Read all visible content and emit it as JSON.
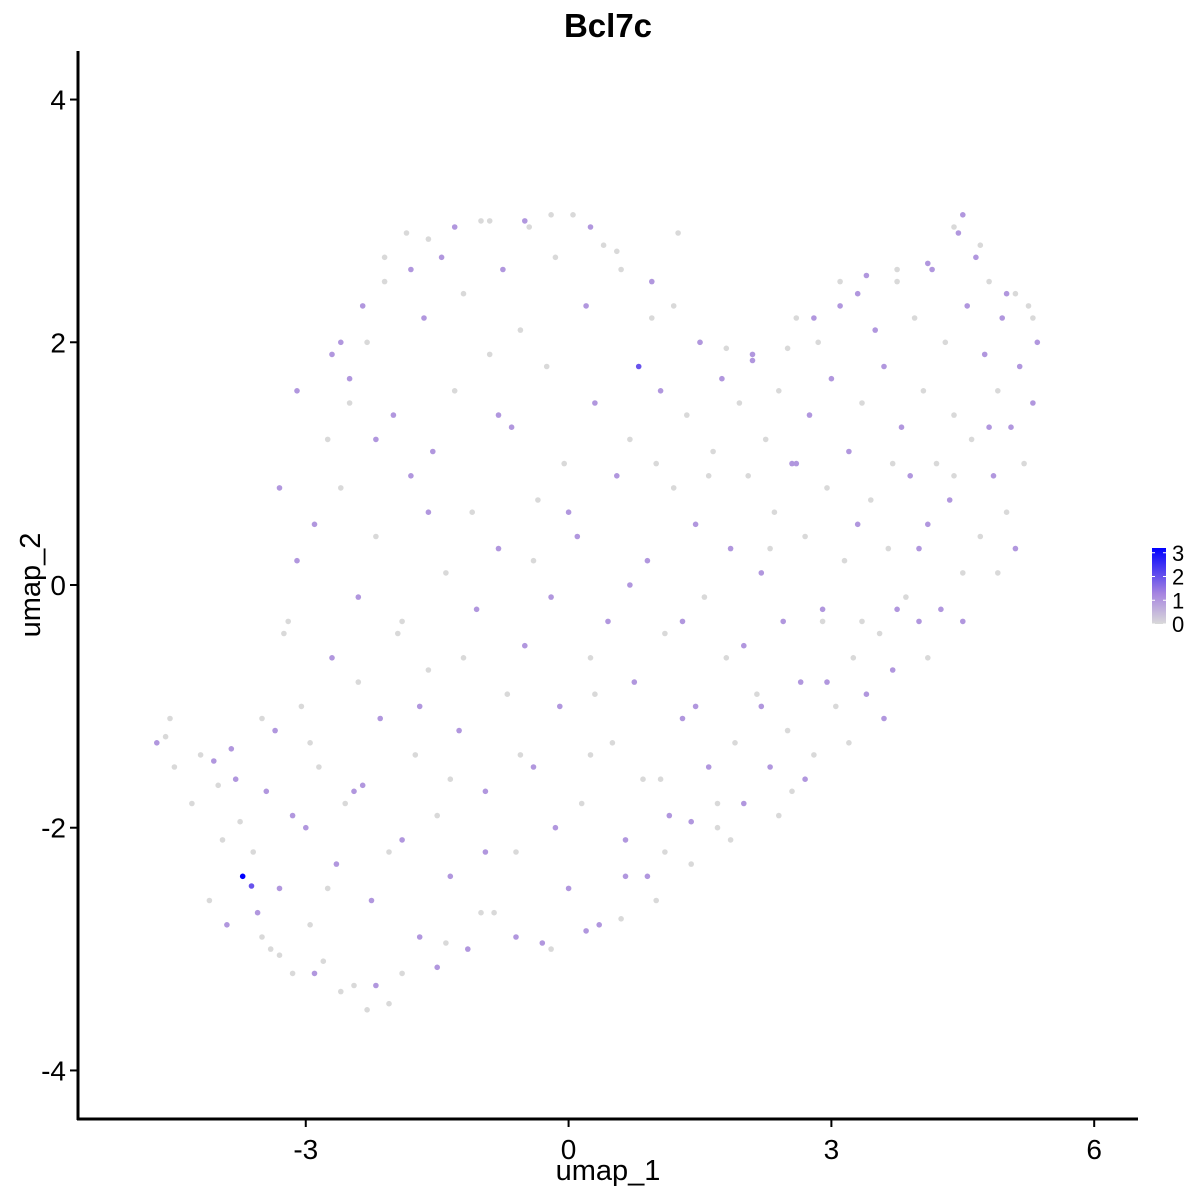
{
  "chart_data": {
    "type": "scatter",
    "title": "Bcl7c",
    "xlabel": "umap_1",
    "ylabel": "umap_2",
    "xlim": [
      -5.6,
      6.5
    ],
    "ylim": [
      -4.4,
      4.4
    ],
    "x_ticks": [
      -3,
      0,
      3,
      6
    ],
    "y_ticks": [
      -4,
      -2,
      0,
      2,
      4
    ],
    "x_tick_labels": [
      "-3",
      "0",
      "3",
      "6"
    ],
    "y_tick_labels": [
      "-4",
      "-2",
      "0",
      "2",
      "4"
    ],
    "grid": false,
    "legend": {
      "placement": "right",
      "type": "colorbar",
      "min": 0,
      "max": 3.2,
      "ticks": [
        0,
        1,
        2,
        3
      ],
      "tick_labels": [
        "0",
        "1",
        "2",
        "3"
      ],
      "low_color": "#d9d9d9",
      "high_color": "#0000ff"
    },
    "point_default_value": 0,
    "points": [
      [
        -4.7,
        -1.3,
        1
      ],
      [
        -4.6,
        -1.25,
        0
      ],
      [
        -4.55,
        -1.1,
        0
      ],
      [
        -4.5,
        -1.5,
        0
      ],
      [
        -4.3,
        -1.8,
        0
      ],
      [
        -4.2,
        -1.4,
        0
      ],
      [
        -4.05,
        -1.45,
        1
      ],
      [
        -4.0,
        -1.65,
        0
      ],
      [
        -3.95,
        -2.1,
        0
      ],
      [
        -3.85,
        -1.35,
        1
      ],
      [
        -3.8,
        -1.6,
        1
      ],
      [
        -3.75,
        -1.95,
        0
      ],
      [
        -3.72,
        -2.4,
        3.2
      ],
      [
        -3.62,
        -2.48,
        2
      ],
      [
        -3.6,
        -2.2,
        0
      ],
      [
        -3.55,
        -2.7,
        1
      ],
      [
        -3.5,
        -2.9,
        0
      ],
      [
        -3.45,
        -1.7,
        1
      ],
      [
        -3.4,
        -3.0,
        0
      ],
      [
        -3.35,
        -1.2,
        1
      ],
      [
        -3.3,
        -2.5,
        1
      ],
      [
        -3.2,
        -0.3,
        0
      ],
      [
        -3.15,
        -3.2,
        0
      ],
      [
        -3.1,
        0.2,
        1
      ],
      [
        -3.05,
        -1.0,
        0
      ],
      [
        -3.0,
        -2.0,
        1
      ],
      [
        -2.95,
        -2.8,
        0
      ],
      [
        -2.9,
        0.5,
        1
      ],
      [
        -2.85,
        -1.5,
        0
      ],
      [
        -2.8,
        -3.1,
        0
      ],
      [
        -2.75,
        1.2,
        0
      ],
      [
        -2.7,
        -0.6,
        1
      ],
      [
        -2.65,
        -2.3,
        1
      ],
      [
        -2.6,
        0.8,
        0
      ],
      [
        -2.55,
        -1.8,
        0
      ],
      [
        -2.5,
        1.7,
        1
      ],
      [
        -2.45,
        -3.3,
        0
      ],
      [
        -2.4,
        -0.1,
        1
      ],
      [
        -2.35,
        -1.65,
        1
      ],
      [
        -2.3,
        2.0,
        0
      ],
      [
        -2.25,
        -2.6,
        1
      ],
      [
        -2.2,
        0.4,
        0
      ],
      [
        -2.15,
        -1.1,
        1
      ],
      [
        -2.1,
        2.5,
        0
      ],
      [
        -2.05,
        -3.45,
        0
      ],
      [
        -2.0,
        1.4,
        1
      ],
      [
        -1.95,
        -0.4,
        0
      ],
      [
        -1.9,
        -2.1,
        1
      ],
      [
        -1.85,
        2.9,
        0
      ],
      [
        -1.8,
        0.9,
        1
      ],
      [
        -1.75,
        -1.4,
        0
      ],
      [
        -1.7,
        -2.9,
        1
      ],
      [
        -1.65,
        2.2,
        1
      ],
      [
        -1.6,
        -0.7,
        0
      ],
      [
        -1.55,
        1.1,
        1
      ],
      [
        -1.5,
        -1.9,
        0
      ],
      [
        -1.45,
        2.7,
        1
      ],
      [
        -1.4,
        0.1,
        0
      ],
      [
        -1.35,
        -2.4,
        1
      ],
      [
        -1.3,
        1.6,
        0
      ],
      [
        -1.25,
        -1.2,
        1
      ],
      [
        -1.2,
        2.4,
        0
      ],
      [
        -1.15,
        -3.0,
        1
      ],
      [
        -1.1,
        0.6,
        0
      ],
      [
        -1.05,
        -0.2,
        1
      ],
      [
        -1.0,
        3.0,
        0
      ],
      [
        -0.95,
        -1.7,
        1
      ],
      [
        -0.9,
        1.9,
        0
      ],
      [
        -0.85,
        -2.7,
        0
      ],
      [
        -0.8,
        0.3,
        1
      ],
      [
        -0.75,
        2.6,
        1
      ],
      [
        -0.7,
        -0.9,
        0
      ],
      [
        -0.65,
        1.3,
        1
      ],
      [
        -0.6,
        -2.2,
        0
      ],
      [
        -0.55,
        2.1,
        0
      ],
      [
        -0.5,
        -0.5,
        1
      ],
      [
        -0.45,
        2.95,
        0
      ],
      [
        -0.4,
        -1.5,
        1
      ],
      [
        -0.35,
        0.7,
        0
      ],
      [
        -0.3,
        -2.95,
        1
      ],
      [
        -0.25,
        1.8,
        0
      ],
      [
        -0.2,
        -0.1,
        1
      ],
      [
        -0.15,
        2.7,
        0
      ],
      [
        -0.1,
        -1.0,
        1
      ],
      [
        -0.05,
        1.0,
        0
      ],
      [
        0.0,
        -2.5,
        1
      ],
      [
        0.05,
        3.05,
        0
      ],
      [
        0.1,
        0.4,
        1
      ],
      [
        0.15,
        -1.8,
        0
      ],
      [
        0.2,
        2.3,
        1
      ],
      [
        0.25,
        -0.6,
        0
      ],
      [
        0.3,
        1.5,
        1
      ],
      [
        0.35,
        -2.8,
        1
      ],
      [
        0.4,
        2.8,
        0
      ],
      [
        0.45,
        -0.3,
        1
      ],
      [
        0.5,
        -1.3,
        0
      ],
      [
        0.55,
        0.9,
        1
      ],
      [
        0.6,
        2.6,
        0
      ],
      [
        0.65,
        -2.1,
        1
      ],
      [
        0.7,
        1.2,
        0
      ],
      [
        0.75,
        -0.8,
        1
      ],
      [
        0.8,
        1.8,
        2
      ],
      [
        0.85,
        -1.6,
        0
      ],
      [
        0.9,
        0.2,
        1
      ],
      [
        0.95,
        2.2,
        0
      ],
      [
        1.0,
        -2.6,
        0
      ],
      [
        1.05,
        1.6,
        1
      ],
      [
        1.1,
        -0.4,
        0
      ],
      [
        1.15,
        -1.9,
        1
      ],
      [
        1.2,
        0.8,
        0
      ],
      [
        1.25,
        2.9,
        0
      ],
      [
        1.3,
        -1.1,
        1
      ],
      [
        1.35,
        1.4,
        0
      ],
      [
        1.4,
        -2.3,
        0
      ],
      [
        1.45,
        0.5,
        1
      ],
      [
        1.5,
        2.0,
        0
      ],
      [
        1.55,
        -0.1,
        0
      ],
      [
        1.6,
        -1.5,
        1
      ],
      [
        1.65,
        1.1,
        0
      ],
      [
        1.7,
        -2.0,
        0
      ],
      [
        1.75,
        1.7,
        1
      ],
      [
        1.8,
        -0.6,
        0
      ],
      [
        1.85,
        0.3,
        1
      ],
      [
        1.9,
        -1.3,
        0
      ],
      [
        1.95,
        1.5,
        0
      ],
      [
        2.0,
        -1.8,
        1
      ],
      [
        2.05,
        0.9,
        0
      ],
      [
        2.1,
        1.9,
        1
      ],
      [
        2.15,
        -0.9,
        0
      ],
      [
        2.2,
        0.1,
        1
      ],
      [
        2.25,
        1.2,
        0
      ],
      [
        2.3,
        -1.5,
        1
      ],
      [
        2.35,
        0.6,
        0
      ],
      [
        2.4,
        1.6,
        0
      ],
      [
        2.45,
        -0.3,
        1
      ],
      [
        2.5,
        -1.2,
        0
      ],
      [
        2.55,
        1.0,
        1
      ],
      [
        2.6,
        2.2,
        0
      ],
      [
        2.65,
        -0.8,
        1
      ],
      [
        2.7,
        0.4,
        0
      ],
      [
        2.75,
        1.4,
        1
      ],
      [
        2.8,
        -1.4,
        0
      ],
      [
        2.85,
        2.0,
        0
      ],
      [
        2.9,
        -0.2,
        1
      ],
      [
        2.95,
        0.8,
        0
      ],
      [
        3.0,
        1.7,
        1
      ],
      [
        3.05,
        -1.0,
        0
      ],
      [
        3.1,
        2.3,
        1
      ],
      [
        3.15,
        0.2,
        0
      ],
      [
        3.2,
        1.1,
        1
      ],
      [
        3.25,
        -0.6,
        0
      ],
      [
        3.3,
        2.4,
        1
      ],
      [
        3.35,
        1.5,
        0
      ],
      [
        3.4,
        -0.9,
        1
      ],
      [
        3.45,
        0.7,
        0
      ],
      [
        3.5,
        2.1,
        1
      ],
      [
        3.55,
        -0.4,
        0
      ],
      [
        3.6,
        1.8,
        1
      ],
      [
        3.65,
        0.3,
        0
      ],
      [
        3.7,
        -0.7,
        1
      ],
      [
        3.75,
        2.5,
        0
      ],
      [
        3.8,
        1.3,
        1
      ],
      [
        3.85,
        -0.1,
        0
      ],
      [
        3.9,
        0.9,
        1
      ],
      [
        3.95,
        2.2,
        0
      ],
      [
        4.0,
        -0.3,
        1
      ],
      [
        4.05,
        1.6,
        0
      ],
      [
        4.1,
        0.5,
        1
      ],
      [
        4.15,
        2.6,
        1
      ],
      [
        4.2,
        1.0,
        0
      ],
      [
        4.25,
        -0.2,
        1
      ],
      [
        4.3,
        2.0,
        0
      ],
      [
        4.35,
        0.7,
        1
      ],
      [
        4.4,
        1.4,
        0
      ],
      [
        4.45,
        2.9,
        1
      ],
      [
        4.5,
        0.1,
        0
      ],
      [
        4.55,
        2.3,
        1
      ],
      [
        4.6,
        1.2,
        0
      ],
      [
        4.65,
        2.7,
        1
      ],
      [
        4.7,
        0.4,
        0
      ],
      [
        4.75,
        1.9,
        1
      ],
      [
        4.8,
        2.5,
        0
      ],
      [
        4.85,
        0.9,
        1
      ],
      [
        4.9,
        1.6,
        0
      ],
      [
        4.95,
        2.2,
        1
      ],
      [
        5.0,
        0.6,
        0
      ],
      [
        5.05,
        1.3,
        1
      ],
      [
        5.1,
        2.4,
        0
      ],
      [
        5.15,
        1.8,
        1
      ],
      [
        5.2,
        1.0,
        0
      ],
      [
        5.25,
        2.3,
        0
      ],
      [
        5.3,
        1.5,
        1
      ],
      [
        5.35,
        2.0,
        1
      ],
      [
        -4.1,
        -2.6,
        0
      ],
      [
        -3.9,
        -2.8,
        1
      ],
      [
        -3.3,
        -3.05,
        0
      ],
      [
        -2.9,
        -3.2,
        1
      ],
      [
        -2.6,
        -3.35,
        0
      ],
      [
        -2.3,
        -3.5,
        0
      ],
      [
        -2.2,
        -3.3,
        1
      ],
      [
        -1.9,
        -3.2,
        0
      ],
      [
        -1.5,
        -3.15,
        1
      ],
      [
        -1.4,
        -2.95,
        0
      ],
      [
        -1.0,
        -2.7,
        0
      ],
      [
        -0.6,
        -2.9,
        1
      ],
      [
        -0.2,
        -3.0,
        0
      ],
      [
        0.2,
        -2.85,
        1
      ],
      [
        0.6,
        -2.75,
        0
      ],
      [
        0.9,
        -2.4,
        1
      ],
      [
        1.1,
        -2.2,
        0
      ],
      [
        1.4,
        -1.95,
        1
      ],
      [
        1.7,
        -1.8,
        0
      ],
      [
        2.4,
        -1.9,
        0
      ],
      [
        2.7,
        -1.6,
        1
      ],
      [
        3.2,
        -1.3,
        0
      ],
      [
        3.6,
        -1.1,
        1
      ],
      [
        4.1,
        -0.6,
        0
      ],
      [
        4.5,
        -0.3,
        1
      ],
      [
        4.9,
        0.1,
        0
      ],
      [
        5.1,
        0.3,
        1
      ],
      [
        -2.6,
        2.0,
        1
      ],
      [
        -2.5,
        1.5,
        0
      ],
      [
        -2.35,
        2.3,
        1
      ],
      [
        -2.1,
        2.7,
        0
      ],
      [
        -1.8,
        2.6,
        1
      ],
      [
        -1.6,
        2.85,
        0
      ],
      [
        -1.3,
        2.95,
        1
      ],
      [
        -0.9,
        3.0,
        0
      ],
      [
        -0.5,
        3.0,
        1
      ],
      [
        -0.2,
        3.05,
        0
      ],
      [
        0.25,
        2.95,
        1
      ],
      [
        0.55,
        2.75,
        0
      ],
      [
        0.95,
        2.5,
        1
      ],
      [
        1.2,
        2.3,
        0
      ],
      [
        1.5,
        2.0,
        1
      ],
      [
        1.8,
        1.95,
        0
      ],
      [
        2.1,
        1.85,
        1
      ],
      [
        2.5,
        1.95,
        0
      ],
      [
        2.8,
        2.2,
        1
      ],
      [
        3.1,
        2.5,
        0
      ],
      [
        3.4,
        2.55,
        1
      ],
      [
        3.75,
        2.6,
        0
      ],
      [
        4.1,
        2.65,
        1
      ],
      [
        4.4,
        2.95,
        0
      ],
      [
        4.5,
        3.05,
        1
      ],
      [
        4.7,
        2.8,
        0
      ],
      [
        5.0,
        2.4,
        1
      ],
      [
        5.3,
        2.2,
        0
      ],
      [
        -3.3,
        0.8,
        1
      ],
      [
        -3.25,
        -0.4,
        0
      ],
      [
        -3.1,
        1.6,
        1
      ],
      [
        -2.95,
        -1.3,
        0
      ],
      [
        -2.7,
        1.9,
        1
      ],
      [
        -2.4,
        -0.8,
        0
      ],
      [
        -2.2,
        1.2,
        1
      ],
      [
        -1.9,
        -0.3,
        0
      ],
      [
        -1.6,
        0.6,
        1
      ],
      [
        -1.2,
        -0.6,
        0
      ],
      [
        -0.8,
        1.4,
        1
      ],
      [
        -0.4,
        0.2,
        0
      ],
      [
        0.0,
        0.6,
        1
      ],
      [
        0.3,
        -0.9,
        0
      ],
      [
        0.7,
        0.0,
        1
      ],
      [
        1.0,
        1.0,
        0
      ],
      [
        1.3,
        -0.3,
        1
      ],
      [
        1.6,
        0.9,
        0
      ],
      [
        2.0,
        -0.5,
        1
      ],
      [
        2.3,
        0.3,
        0
      ],
      [
        2.6,
        1.0,
        1
      ],
      [
        2.9,
        -0.3,
        0
      ],
      [
        3.3,
        0.5,
        1
      ],
      [
        3.7,
        1.0,
        0
      ],
      [
        4.0,
        0.3,
        1
      ],
      [
        4.4,
        0.9,
        0
      ],
      [
        4.8,
        1.3,
        1
      ],
      [
        -3.5,
        -1.1,
        0
      ],
      [
        -3.15,
        -1.9,
        1
      ],
      [
        -2.75,
        -2.5,
        0
      ],
      [
        -2.45,
        -1.7,
        1
      ],
      [
        -2.05,
        -2.2,
        0
      ],
      [
        -1.7,
        -1.0,
        1
      ],
      [
        -1.35,
        -1.6,
        0
      ],
      [
        -0.95,
        -2.2,
        1
      ],
      [
        -0.55,
        -1.4,
        0
      ],
      [
        -0.15,
        -2.0,
        1
      ],
      [
        0.25,
        -1.4,
        0
      ],
      [
        0.65,
        -2.4,
        1
      ],
      [
        1.05,
        -1.6,
        0
      ],
      [
        1.45,
        -1.0,
        1
      ],
      [
        1.85,
        -2.1,
        0
      ],
      [
        2.2,
        -1.0,
        1
      ],
      [
        2.55,
        -1.7,
        0
      ],
      [
        2.95,
        -0.8,
        1
      ],
      [
        3.35,
        -0.3,
        0
      ],
      [
        3.75,
        -0.2,
        1
      ]
    ]
  }
}
